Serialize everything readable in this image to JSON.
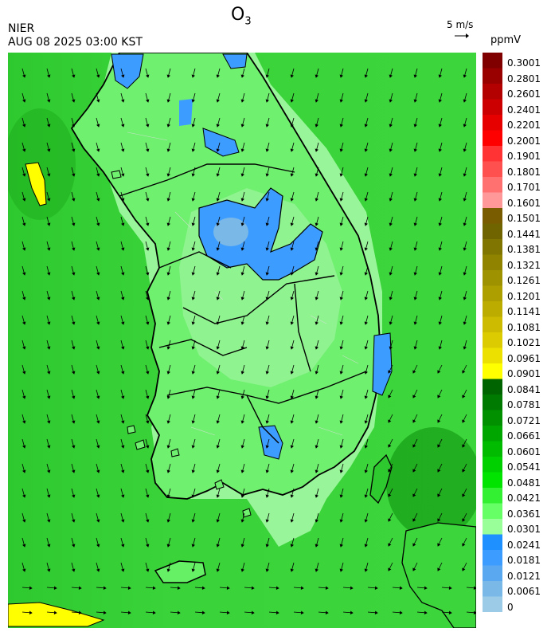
{
  "header": {
    "species": "O",
    "species_sub": "3",
    "source": "NIER",
    "datetime": "AUG 08 2025 03:00 KST",
    "wind_reference": "5 m/s",
    "unit": "ppmV"
  },
  "legend": {
    "labels": [
      "0.3001",
      "0.2801",
      "0.2601",
      "0.2401",
      "0.2201",
      "0.2001",
      "0.1901",
      "0.1801",
      "0.1701",
      "0.1601",
      "0.1501",
      "0.1441",
      "0.1381",
      "0.1321",
      "0.1261",
      "0.1201",
      "0.1141",
      "0.1081",
      "0.1021",
      "0.0961",
      "0.0901",
      "0.0841",
      "0.0781",
      "0.0721",
      "0.0661",
      "0.0601",
      "0.0541",
      "0.0481",
      "0.0421",
      "0.0361",
      "0.0301",
      "0.0241",
      "0.0181",
      "0.0121",
      "0.0061",
      "0"
    ],
    "colors": [
      "#800000",
      "#990000",
      "#b30000",
      "#cc0000",
      "#e60000",
      "#ff0000",
      "#ff3333",
      "#ff5050",
      "#ff7070",
      "#ff9999",
      "#7a5c00",
      "#6f6400",
      "#807500",
      "#8f8300",
      "#9e9200",
      "#ad9f00",
      "#bcac00",
      "#ccbb00",
      "#dccb00",
      "#ebe000",
      "#ffff00",
      "#006400",
      "#007a00",
      "#009000",
      "#00a600",
      "#00bb00",
      "#00d000",
      "#00e400",
      "#33f033",
      "#66ff66",
      "#99ff99",
      "#1e90ff",
      "#3d9cff",
      "#5aa9f0",
      "#7ab8e8",
      "#9ccbe8"
    ]
  },
  "map": {
    "region": "South Korea",
    "background_color": "#3fd83f",
    "land_color": "#55ec55"
  }
}
